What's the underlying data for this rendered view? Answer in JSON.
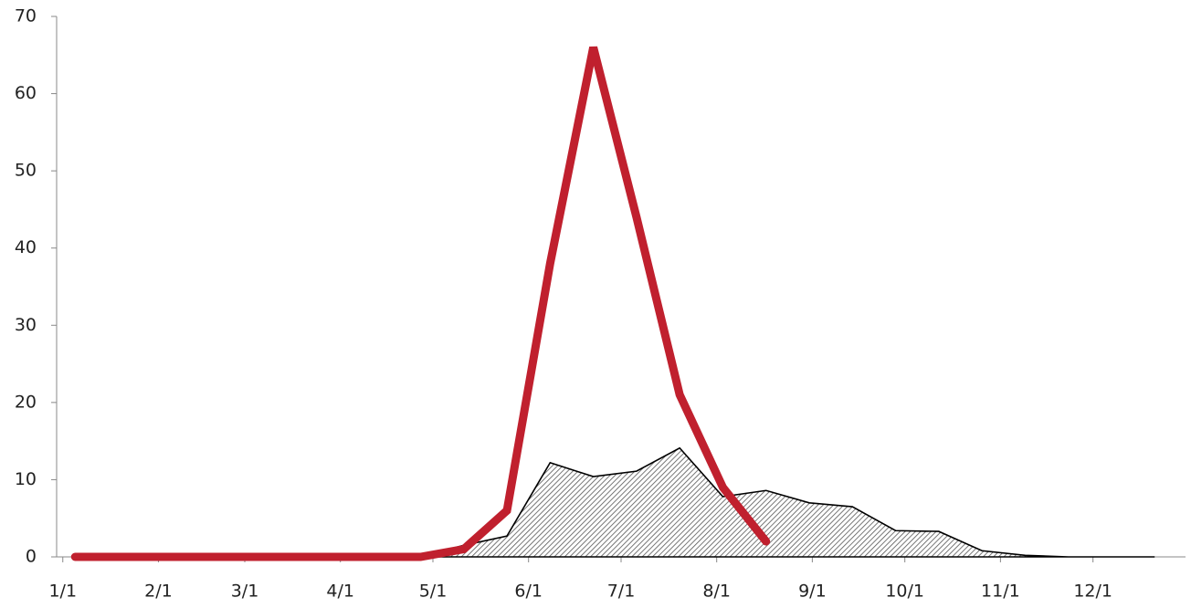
{
  "chart_data": {
    "type": "line",
    "xlim": [
      -2,
      364
    ],
    "xticks": [
      {
        "value": 0,
        "label": "1/1"
      },
      {
        "value": 31,
        "label": "2/1"
      },
      {
        "value": 59,
        "label": "3/1"
      },
      {
        "value": 90,
        "label": "4/1"
      },
      {
        "value": 120,
        "label": "5/1"
      },
      {
        "value": 151,
        "label": "6/1"
      },
      {
        "value": 181,
        "label": "7/1"
      },
      {
        "value": 212,
        "label": "8/1"
      },
      {
        "value": 243,
        "label": "9/1"
      },
      {
        "value": 273,
        "label": "10/1"
      },
      {
        "value": 304,
        "label": "11/1"
      },
      {
        "value": 334,
        "label": "12/1"
      }
    ],
    "ylim": [
      0,
      70
    ],
    "yticks": [
      0,
      10,
      20,
      30,
      40,
      50,
      60,
      70
    ],
    "series": [
      {
        "type": "area",
        "color": "#000000",
        "x": [
          116,
          130,
          144,
          158,
          172,
          186,
          200,
          214,
          228,
          242,
          256,
          270,
          284,
          298,
          312,
          326,
          340,
          354
        ],
        "values": [
          0,
          1.5,
          2.7,
          12.2,
          10.4,
          11.1,
          14.1,
          7.8,
          8.6,
          7.0,
          6.5,
          3.4,
          3.3,
          0.8,
          0.2,
          0,
          0,
          0
        ]
      },
      {
        "type": "line",
        "color": "#c0202e",
        "x": [
          4,
          18,
          32,
          46,
          60,
          74,
          88,
          102,
          116,
          130,
          144,
          158,
          172,
          186,
          200,
          214,
          228
        ],
        "values": [
          0,
          0,
          0,
          0,
          0,
          0,
          0,
          0,
          0,
          1,
          6,
          38,
          66,
          44,
          21,
          9,
          2
        ]
      }
    ]
  }
}
